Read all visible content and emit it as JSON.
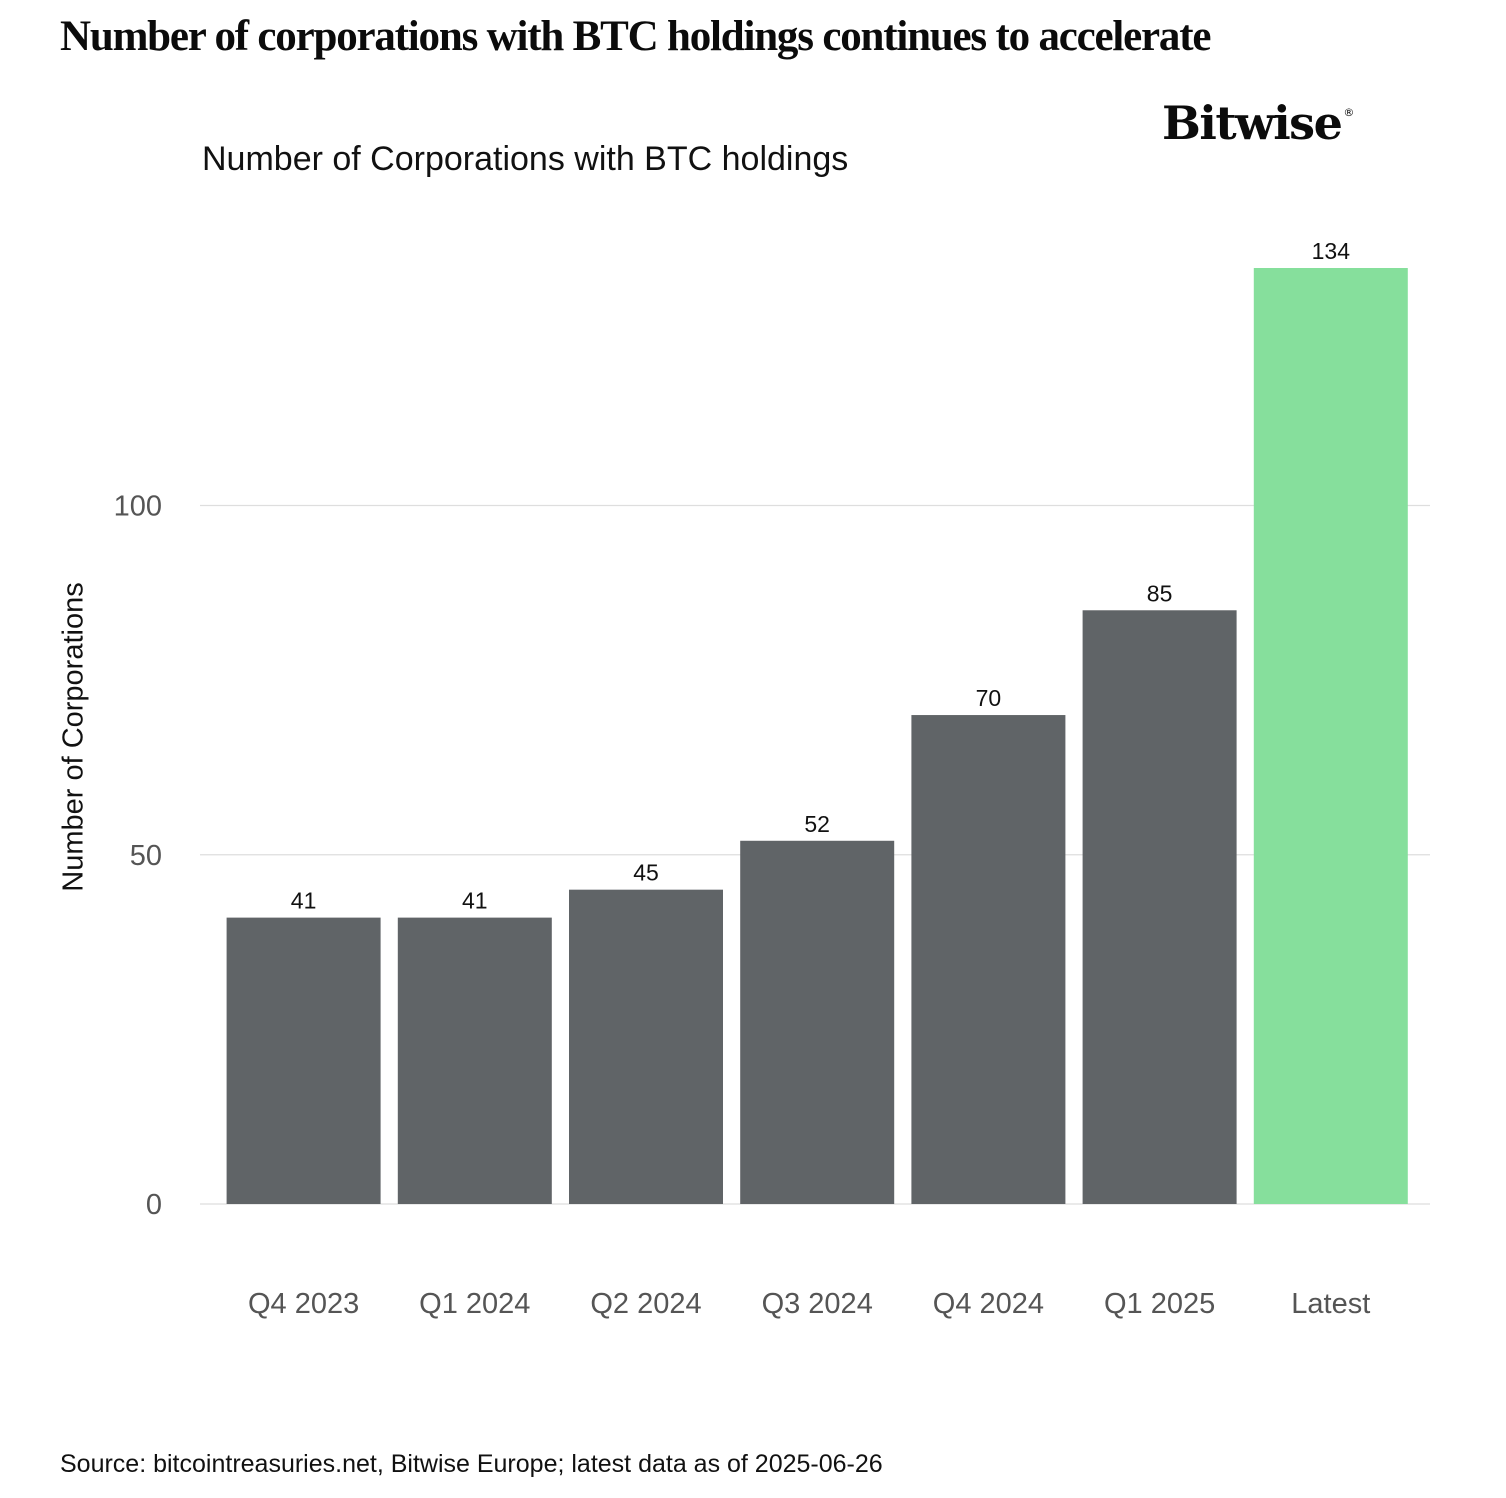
{
  "headline": "Number of corporations with BTC holdings continues to accelerate",
  "logo": {
    "text": "Bitwise",
    "mark": "®"
  },
  "footer": {
    "source": "Source: bitcointreasuries.net, Bitwise Europe; latest data as of 2025-06-26"
  },
  "chart_data": {
    "type": "bar",
    "title": "Number of Corporations with BTC holdings",
    "xlabel": "",
    "ylabel": "Number of Corporations",
    "categories": [
      "Q4 2023",
      "Q1 2024",
      "Q2 2024",
      "Q3 2024",
      "Q4 2024",
      "Q1 2025",
      "Latest"
    ],
    "values": [
      41,
      41,
      45,
      52,
      70,
      85,
      134
    ],
    "data_labels": [
      "41",
      "41",
      "45",
      "52",
      "70",
      "85",
      "134"
    ],
    "yticks": [
      0,
      50,
      100
    ],
    "ytick_labels": [
      "0",
      "50",
      "100"
    ],
    "ylim": [
      0,
      134
    ],
    "grid": true,
    "legend": "none",
    "colors": {
      "default_bar": "#606467",
      "highlight_bar": "#86df9c",
      "gridline": "#dedede",
      "tick_label": "#555555",
      "data_label": "#111111"
    },
    "highlight_index": 6
  }
}
